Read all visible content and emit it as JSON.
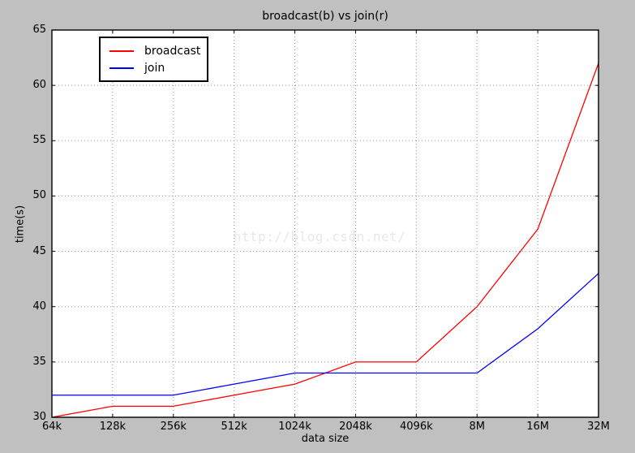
{
  "chart_data": {
    "type": "line",
    "title": "broadcast(b) vs join(r)",
    "xlabel": "data size",
    "ylabel": "time(s)",
    "categories": [
      "64k",
      "128k",
      "256k",
      "512k",
      "1024k",
      "2048k",
      "4096k",
      "8M",
      "16M",
      "32M"
    ],
    "series": [
      {
        "name": "broadcast",
        "color": "#ff0000",
        "values": [
          30,
          31,
          31,
          32,
          33,
          35,
          35,
          40,
          47,
          62
        ]
      },
      {
        "name": "join",
        "color": "#0000ff",
        "values": [
          32,
          32,
          32,
          33,
          34,
          34,
          34,
          34,
          38,
          43
        ]
      }
    ],
    "ylim": [
      30,
      65
    ],
    "yticks": [
      30,
      35,
      40,
      45,
      50,
      55,
      60,
      65
    ],
    "grid": true,
    "legend_position": "upper left"
  },
  "watermark": {
    "text": "http://blog.csdn.net/"
  },
  "colors": {
    "figure_bg": "#c0c0c0",
    "plot_bg": "#ffffff",
    "grid": "#999999",
    "axis": "#000000",
    "watermark_text": "#e8e8e8"
  }
}
